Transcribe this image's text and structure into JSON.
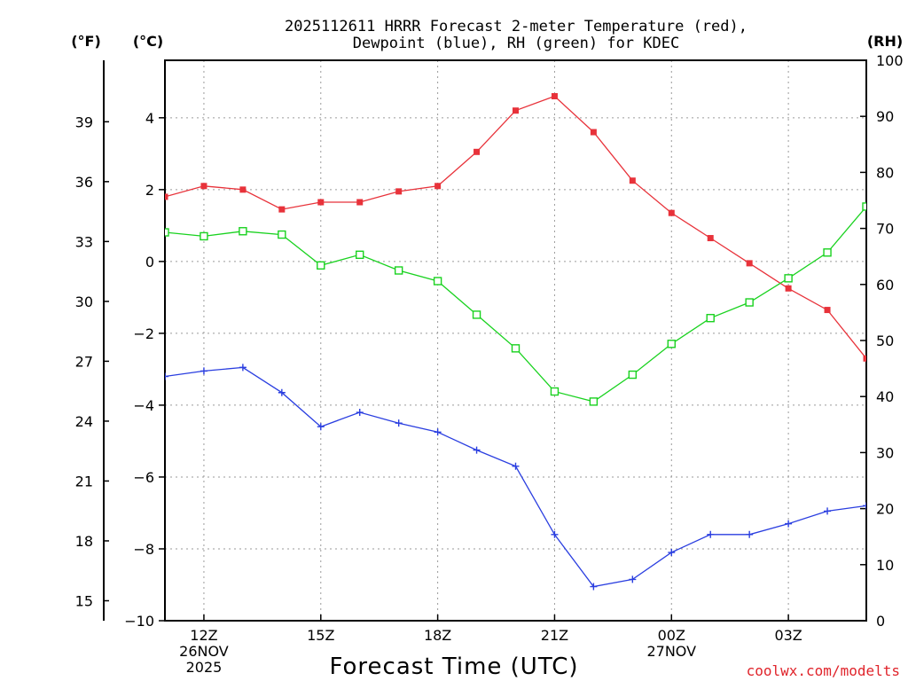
{
  "chart_data": {
    "type": "line",
    "title_line1": "2025112611 HRRR Forecast 2-meter Temperature (red),",
    "title_line2": "Dewpoint (blue), RH (green) for KDEC",
    "xlabel": "Forecast Time (UTC)",
    "credit": "coolwx.com/modelts",
    "units": {
      "f": "(°F)",
      "c": "(°C)",
      "rh": "(RH)"
    },
    "x_hours": [
      11,
      12,
      13,
      14,
      15,
      16,
      17,
      18,
      19,
      20,
      21,
      22,
      23,
      24,
      25,
      26,
      27,
      28,
      29
    ],
    "xlim": [
      11,
      29
    ],
    "x_ticks": [
      {
        "hour": 12,
        "lines": [
          "12Z",
          "26NOV",
          "2025"
        ]
      },
      {
        "hour": 15,
        "lines": [
          "15Z"
        ]
      },
      {
        "hour": 18,
        "lines": [
          "18Z"
        ]
      },
      {
        "hour": 21,
        "lines": [
          "21Z"
        ]
      },
      {
        "hour": 24,
        "lines": [
          "00Z",
          "27NOV"
        ]
      },
      {
        "hour": 27,
        "lines": [
          "03Z"
        ]
      }
    ],
    "c_axis": {
      "lim": [
        -10,
        5.6
      ],
      "ticks": [
        "4",
        "2",
        "0",
        "−2",
        "−4",
        "−6",
        "−8",
        "−10"
      ],
      "tick_values": [
        4,
        2,
        0,
        -2,
        -4,
        -6,
        -8,
        -10
      ]
    },
    "f_axis": {
      "ticks": [
        "39",
        "36",
        "33",
        "30",
        "27",
        "24",
        "21",
        "18",
        "15"
      ],
      "tick_values": [
        39,
        36,
        33,
        30,
        27,
        24,
        21,
        18,
        15
      ]
    },
    "rh_axis": {
      "lim": [
        0,
        100
      ],
      "ticks": [
        "100",
        "90",
        "80",
        "70",
        "60",
        "50",
        "40",
        "30",
        "20",
        "10",
        "0"
      ],
      "tick_values": [
        100,
        90,
        80,
        70,
        60,
        50,
        40,
        30,
        20,
        10,
        0
      ]
    },
    "series": [
      {
        "name": "Temperature",
        "axis": "c",
        "marker": "filled-square",
        "color": "#e8323a",
        "values": [
          1.8,
          2.1,
          2.0,
          1.45,
          1.65,
          1.65,
          1.95,
          2.1,
          3.05,
          4.2,
          4.6,
          3.6,
          2.25,
          1.35,
          0.65,
          -0.05,
          -0.75,
          -1.35,
          -2.7
        ]
      },
      {
        "name": "Dewpoint",
        "axis": "c",
        "marker": "plus",
        "color": "#2a3ee0",
        "values": [
          -3.2,
          -3.05,
          -2.95,
          -3.65,
          -4.6,
          -4.2,
          -4.5,
          -4.75,
          -5.25,
          -5.7,
          -7.6,
          -9.05,
          -8.85,
          -8.1,
          -7.6,
          -7.6,
          -7.3,
          -6.95,
          -6.8
        ]
      },
      {
        "name": "RH",
        "axis": "rh",
        "marker": "open-square",
        "color": "#19d21f",
        "values": [
          69.3,
          68.6,
          69.5,
          68.9,
          63.4,
          65.3,
          62.5,
          60.6,
          54.6,
          48.6,
          40.9,
          39.1,
          43.9,
          49.4,
          54.0,
          56.8,
          61.1,
          65.7,
          73.9
        ]
      }
    ]
  }
}
